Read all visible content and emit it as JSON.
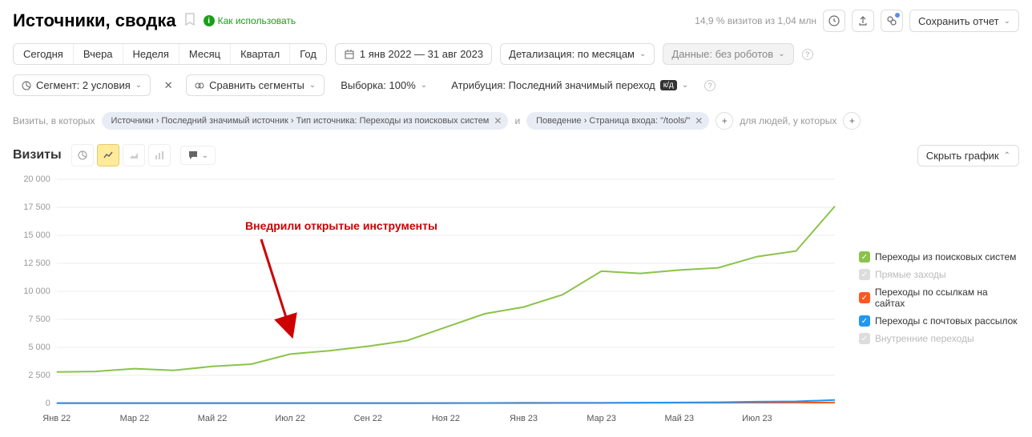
{
  "header": {
    "title": "Источники, сводка",
    "how_to": "Как использовать",
    "stat": "14,9 % визитов из 1,04 млн",
    "save": "Сохранить отчет"
  },
  "periods": {
    "items": [
      "Сегодня",
      "Вчера",
      "Неделя",
      "Месяц",
      "Квартал",
      "Год"
    ],
    "range": "1 янв 2022 — 31 авг 2023",
    "detail_label": "Детализация: по месяцам",
    "robots": "Данные: без роботов"
  },
  "controls": {
    "segment": "Сегмент: 2 условия",
    "compare": "Сравнить сегменты",
    "sample": "Выборка: 100%",
    "attribution_label": "Атрибуция: Последний значимый переход",
    "attribution_badge": "к/д"
  },
  "filters": {
    "prefix": "Визиты, в которых",
    "pill1": "Источники › Последний значимый источник › Тип источника: Переходы из поисковых систем",
    "conj": "и",
    "pill2": "Поведение › Страница входа: \"/tools/\"",
    "suffix": "для людей, у которых"
  },
  "chart": {
    "title": "Визиты",
    "hide": "Скрыть график",
    "annotation": "Внедрили открытые инструменты",
    "annotation_color": "#cc0000",
    "y_ticks": [
      0,
      2500,
      5000,
      7500,
      10000,
      12500,
      15000,
      17500,
      20000
    ],
    "y_tick_labels": [
      "0",
      "2 500",
      "5 000",
      "7 500",
      "10 000",
      "12 500",
      "15 000",
      "17 500",
      "20 000"
    ],
    "x_labels": [
      "Янв 22",
      "Мар 22",
      "Май 22",
      "Июл 22",
      "Сен 22",
      "Ноя 22",
      "Янв 23",
      "Мар 23",
      "Май 23",
      "Июл 23"
    ],
    "series": [
      {
        "key": "search",
        "label": "Переходы из поисковых систем",
        "color": "#8bc34a",
        "enabled": true,
        "points": [
          2800,
          2850,
          3100,
          2950,
          3300,
          3500,
          4400,
          4700,
          5100,
          5600,
          6800,
          8000,
          8600,
          9700,
          11800,
          11600,
          11900,
          12100,
          13100,
          13600,
          17600
        ]
      },
      {
        "key": "direct",
        "label": "Прямые заходы",
        "color": "#cccccc",
        "enabled": false,
        "points": [
          0,
          0,
          0,
          0,
          0,
          0,
          0,
          0,
          0,
          0,
          0,
          0,
          0,
          0,
          0,
          0,
          0,
          0,
          0,
          0,
          0
        ]
      },
      {
        "key": "links",
        "label": "Переходы по ссылкам на сайтах",
        "color": "#ff5722",
        "enabled": true,
        "points": [
          30,
          30,
          30,
          30,
          30,
          30,
          30,
          30,
          30,
          30,
          40,
          40,
          50,
          50,
          50,
          50,
          60,
          60,
          70,
          70,
          80
        ]
      },
      {
        "key": "mail",
        "label": "Переходы с почтовых рассылок",
        "color": "#2196f3",
        "enabled": true,
        "points": [
          20,
          20,
          20,
          20,
          20,
          20,
          20,
          20,
          20,
          20,
          20,
          30,
          30,
          40,
          40,
          60,
          80,
          100,
          150,
          180,
          300
        ]
      },
      {
        "key": "internal",
        "label": "Внутренние переходы",
        "color": "#cccccc",
        "enabled": false,
        "points": [
          0,
          0,
          0,
          0,
          0,
          0,
          0,
          0,
          0,
          0,
          0,
          0,
          0,
          0,
          0,
          0,
          0,
          0,
          0,
          0,
          0
        ]
      }
    ]
  }
}
